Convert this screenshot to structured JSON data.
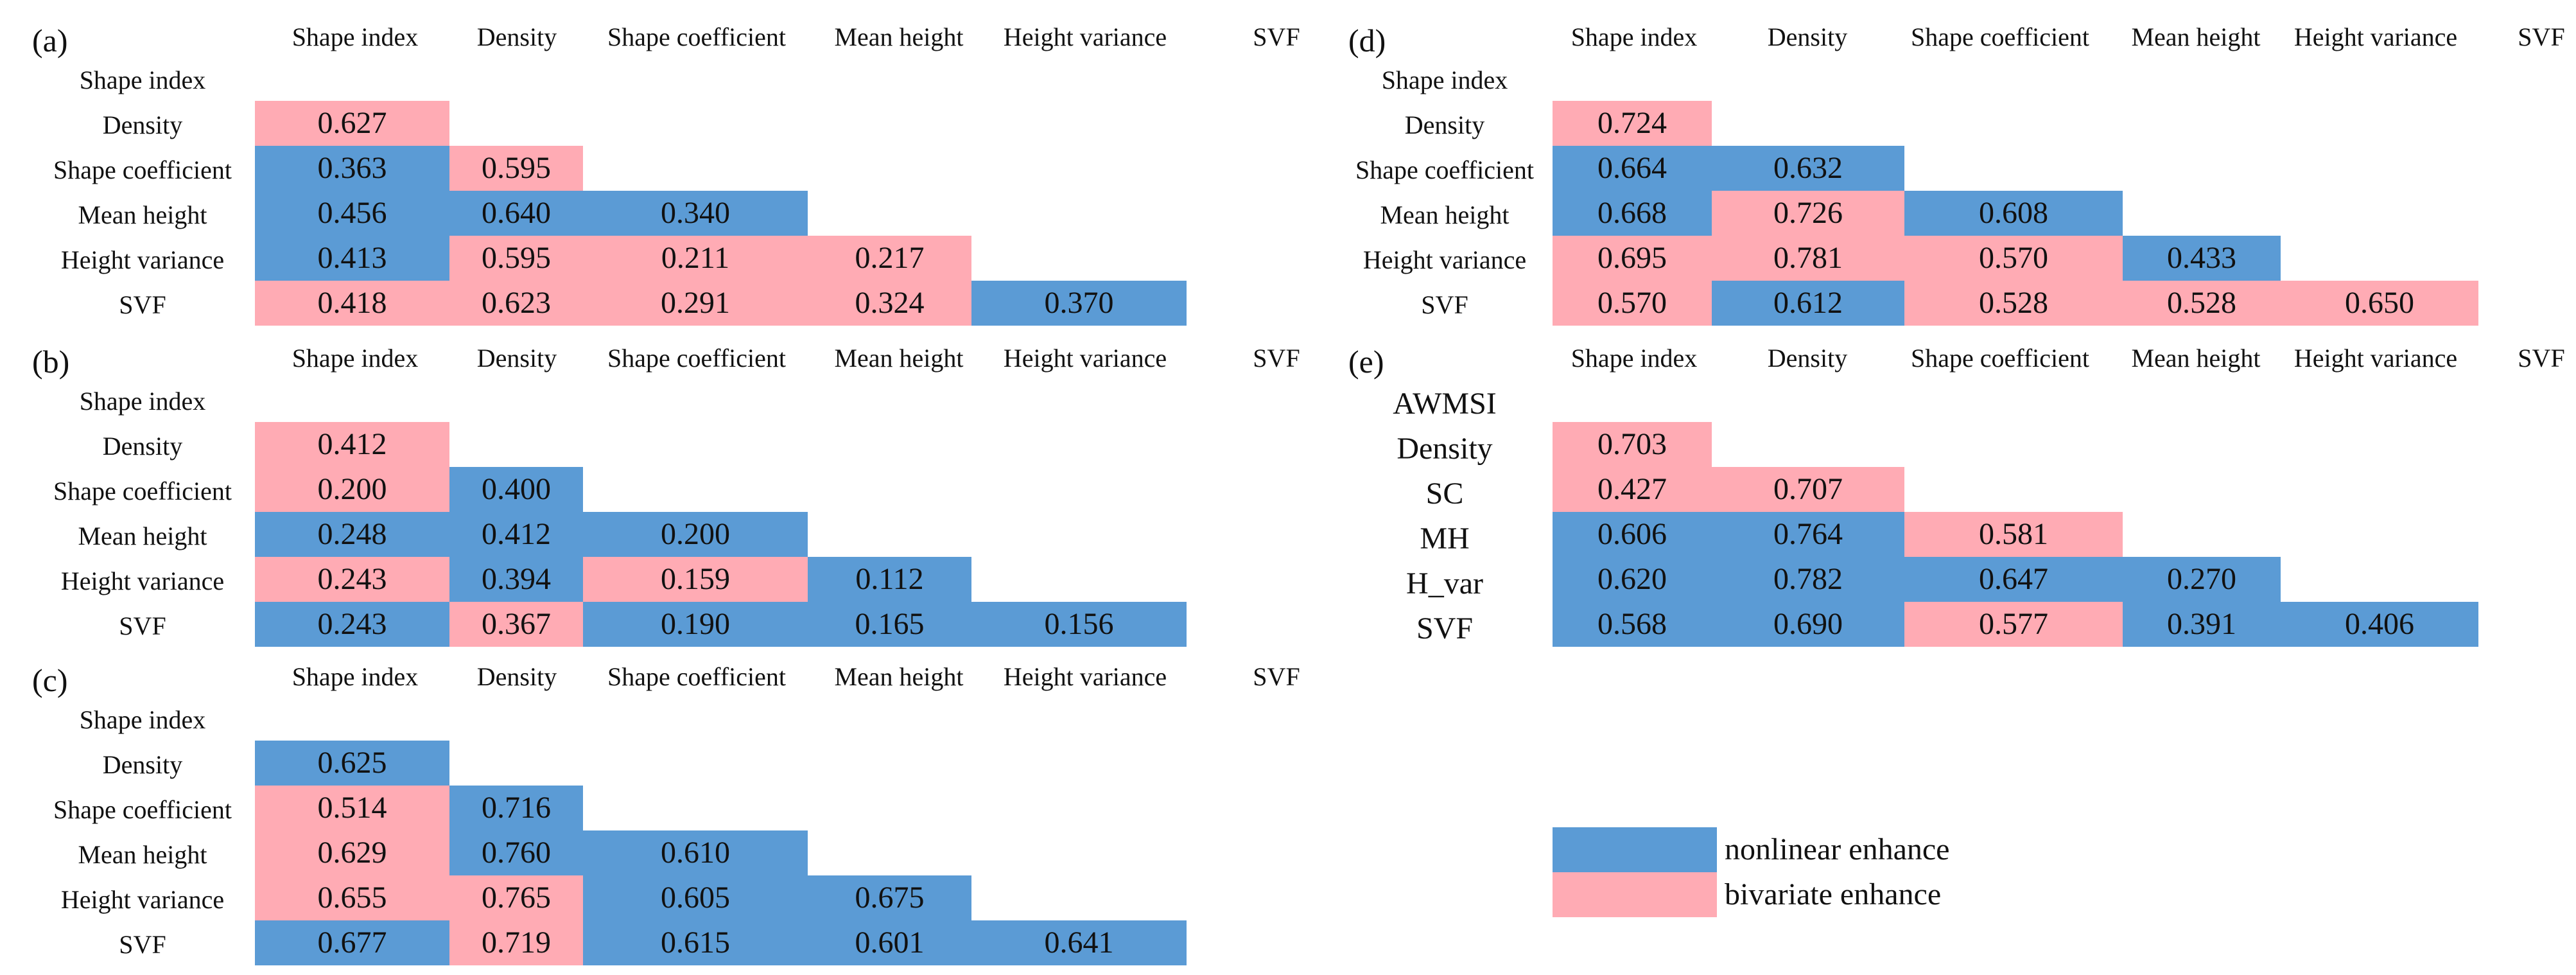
{
  "colors": {
    "nonlinear": "#5b9bd5",
    "bivariate": "#ffabb4"
  },
  "legend": [
    {
      "key": "nonlinear",
      "label": "nonlinear enhance"
    },
    {
      "key": "bivariate",
      "label": "bivariate enhance"
    }
  ],
  "chart_data": [
    {
      "type": "heatmap",
      "panel": "(a)",
      "columns": [
        "Shape index",
        "Density",
        "Shape coefficient",
        "Mean height",
        "Height variance",
        "SVF"
      ],
      "rows": [
        {
          "label": "Shape index",
          "values": []
        },
        {
          "label": "Density",
          "values": [
            0.627
          ],
          "types": [
            "bivariate"
          ]
        },
        {
          "label": "Shape coefficient",
          "values": [
            0.363,
            0.595
          ],
          "types": [
            "nonlinear",
            "bivariate"
          ]
        },
        {
          "label": "Mean height",
          "values": [
            0.456,
            0.64,
            0.34
          ],
          "types": [
            "nonlinear",
            "nonlinear",
            "nonlinear"
          ]
        },
        {
          "label": "Height variance",
          "values": [
            0.413,
            0.595,
            0.211,
            0.217
          ],
          "types": [
            "nonlinear",
            "bivariate",
            "bivariate",
            "bivariate"
          ]
        },
        {
          "label": "SVF",
          "values": [
            0.418,
            0.623,
            0.291,
            0.324,
            0.37
          ],
          "types": [
            "bivariate",
            "bivariate",
            "bivariate",
            "bivariate",
            "nonlinear"
          ]
        }
      ]
    },
    {
      "type": "heatmap",
      "panel": "(b)",
      "columns": [
        "Shape index",
        "Density",
        "Shape coefficient",
        "Mean height",
        "Height variance",
        "SVF"
      ],
      "rows": [
        {
          "label": "Shape index",
          "values": []
        },
        {
          "label": "Density",
          "values": [
            0.412
          ],
          "types": [
            "bivariate"
          ]
        },
        {
          "label": "Shape coefficient",
          "values": [
            0.2,
            0.4
          ],
          "types": [
            "bivariate",
            "nonlinear"
          ]
        },
        {
          "label": "Mean height",
          "values": [
            0.248,
            0.412,
            0.2
          ],
          "types": [
            "nonlinear",
            "nonlinear",
            "nonlinear"
          ]
        },
        {
          "label": "Height variance",
          "values": [
            0.243,
            0.394,
            0.159,
            0.112
          ],
          "types": [
            "bivariate",
            "nonlinear",
            "bivariate",
            "nonlinear"
          ]
        },
        {
          "label": "SVF",
          "values": [
            0.243,
            0.367,
            0.19,
            0.165,
            0.156
          ],
          "types": [
            "nonlinear",
            "bivariate",
            "nonlinear",
            "nonlinear",
            "nonlinear"
          ]
        }
      ]
    },
    {
      "type": "heatmap",
      "panel": "(c)",
      "columns": [
        "Shape index",
        "Density",
        "Shape coefficient",
        "Mean height",
        "Height variance",
        "SVF"
      ],
      "rows": [
        {
          "label": "Shape index",
          "values": []
        },
        {
          "label": "Density",
          "values": [
            0.625
          ],
          "types": [
            "nonlinear"
          ]
        },
        {
          "label": "Shape coefficient",
          "values": [
            0.514,
            0.716
          ],
          "types": [
            "bivariate",
            "nonlinear"
          ]
        },
        {
          "label": "Mean height",
          "values": [
            0.629,
            0.76,
            0.61
          ],
          "types": [
            "bivariate",
            "nonlinear",
            "nonlinear"
          ]
        },
        {
          "label": "Height variance",
          "values": [
            0.655,
            0.765,
            0.605,
            0.675
          ],
          "types": [
            "bivariate",
            "bivariate",
            "nonlinear",
            "nonlinear"
          ]
        },
        {
          "label": "SVF",
          "values": [
            0.677,
            0.719,
            0.615,
            0.601,
            0.641
          ],
          "types": [
            "nonlinear",
            "bivariate",
            "nonlinear",
            "nonlinear",
            "nonlinear"
          ]
        }
      ]
    },
    {
      "type": "heatmap",
      "panel": "(d)",
      "columns": [
        "Shape index",
        "Density",
        "Shape coefficient",
        "Mean height",
        "Height variance",
        "SVF"
      ],
      "rows": [
        {
          "label": "Shape index",
          "values": []
        },
        {
          "label": "Density",
          "values": [
            0.724
          ],
          "types": [
            "bivariate"
          ]
        },
        {
          "label": "Shape coefficient",
          "values": [
            0.664,
            0.632
          ],
          "types": [
            "nonlinear",
            "nonlinear"
          ]
        },
        {
          "label": "Mean height",
          "values": [
            0.668,
            0.726,
            0.608
          ],
          "types": [
            "nonlinear",
            "bivariate",
            "nonlinear"
          ]
        },
        {
          "label": "Height variance",
          "values": [
            0.695,
            0.781,
            0.57,
            0.433
          ],
          "types": [
            "bivariate",
            "bivariate",
            "bivariate",
            "nonlinear"
          ]
        },
        {
          "label": "SVF",
          "values": [
            0.57,
            0.612,
            0.528,
            0.528,
            0.65
          ],
          "types": [
            "bivariate",
            "nonlinear",
            "bivariate",
            "bivariate",
            "bivariate"
          ]
        }
      ]
    },
    {
      "type": "heatmap",
      "panel": "(e)",
      "columns": [
        "Shape index",
        "Density",
        "Shape coefficient",
        "Mean height",
        "Height variance",
        "SVF"
      ],
      "rows": [
        {
          "label": "AWMSI",
          "values": []
        },
        {
          "label": "Density",
          "values": [
            0.703
          ],
          "types": [
            "bivariate"
          ]
        },
        {
          "label": "SC",
          "values": [
            0.427,
            0.707
          ],
          "types": [
            "bivariate",
            "bivariate"
          ]
        },
        {
          "label": "MH",
          "values": [
            0.606,
            0.764,
            0.581
          ],
          "types": [
            "nonlinear",
            "nonlinear",
            "bivariate"
          ]
        },
        {
          "label": "H_var",
          "values": [
            0.62,
            0.782,
            0.647,
            0.27
          ],
          "types": [
            "nonlinear",
            "nonlinear",
            "nonlinear",
            "nonlinear"
          ]
        },
        {
          "label": "SVF",
          "values": [
            0.568,
            0.69,
            0.577,
            0.391,
            0.406
          ],
          "types": [
            "nonlinear",
            "nonlinear",
            "bivariate",
            "nonlinear",
            "nonlinear"
          ]
        }
      ]
    }
  ]
}
